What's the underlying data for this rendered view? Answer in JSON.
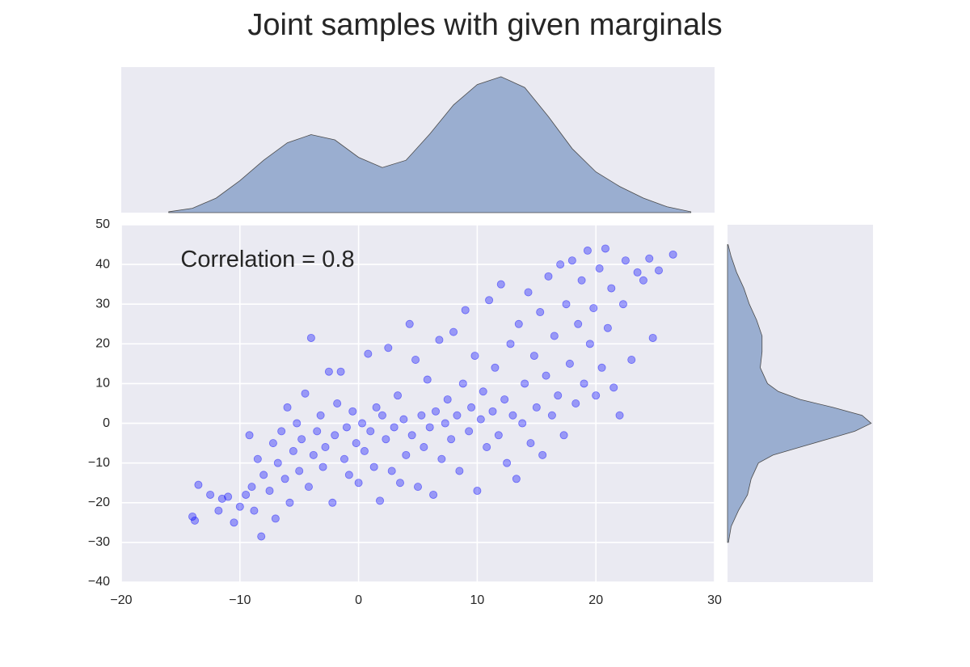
{
  "chart_data": [
    {
      "type": "scatter",
      "title": "Joint samples with given marginals",
      "annotation": "Correlation = 0.8",
      "annotation_at": [
        -15,
        41
      ],
      "color": "#0000ff",
      "grid": true,
      "xlim": [
        -20,
        30
      ],
      "ylim": [
        -40,
        50
      ],
      "xticks": [
        {
          "value": -20,
          "label": "−20"
        },
        {
          "value": -10,
          "label": "−10"
        },
        0,
        10,
        20,
        30
      ],
      "yticks": [
        {
          "value": -40,
          "label": "−40"
        },
        {
          "value": -30,
          "label": "−30"
        },
        {
          "value": -20,
          "label": "−20"
        },
        {
          "value": -10,
          "label": "−10"
        },
        0,
        10,
        20,
        30,
        40,
        50
      ],
      "x": [
        -14,
        -13.8,
        -13.5,
        -12.5,
        -11.8,
        -11.5,
        -11,
        -10.5,
        -10,
        -9.5,
        -9.2,
        -9,
        -8.8,
        -8.5,
        -8.2,
        -8,
        -7.5,
        -7.2,
        -7,
        -6.8,
        -6.5,
        -6.2,
        -6,
        -5.8,
        -5.5,
        -5.2,
        -5,
        -4.8,
        -4.5,
        -4.2,
        -4,
        -3.8,
        -3.5,
        -3.2,
        -3,
        -2.8,
        -2.5,
        -2.2,
        -2,
        -1.8,
        -1.5,
        -1.2,
        -1,
        -0.8,
        -0.5,
        -0.2,
        0,
        0.3,
        0.5,
        0.8,
        1,
        1.3,
        1.5,
        1.8,
        2,
        2.3,
        2.5,
        2.8,
        3,
        3.3,
        3.5,
        3.8,
        4,
        4.3,
        4.5,
        4.8,
        5,
        5.3,
        5.5,
        5.8,
        6,
        6.3,
        6.5,
        6.8,
        7,
        7.3,
        7.5,
        7.8,
        8,
        8.3,
        8.5,
        8.8,
        9,
        9.3,
        9.5,
        9.8,
        10,
        10.3,
        10.5,
        10.8,
        11,
        11.3,
        11.5,
        11.8,
        12,
        12.3,
        12.5,
        12.8,
        13,
        13.3,
        13.5,
        13.8,
        14,
        14.3,
        14.5,
        14.8,
        15,
        15.3,
        15.5,
        15.8,
        16,
        16.3,
        16.5,
        16.8,
        17,
        17.3,
        17.5,
        17.8,
        18,
        18.3,
        18.5,
        18.8,
        19,
        19.3,
        19.5,
        19.8,
        20,
        20.3,
        20.5,
        20.8,
        21,
        21.3,
        21.5,
        22,
        22.3,
        22.5,
        23,
        23.5,
        24,
        24.5,
        24.8,
        25.3,
        26.5
      ],
      "y": [
        -23.5,
        -24.5,
        -15.5,
        -18,
        -22,
        -19,
        -18.5,
        -25,
        -21,
        -18,
        -3,
        -16,
        -22,
        -9,
        -28.5,
        -13,
        -17,
        -5,
        -24,
        -10,
        -2,
        -14,
        4,
        -20,
        -7,
        0,
        -12,
        -4,
        7.5,
        -16,
        21.5,
        -8,
        -2,
        2,
        -11,
        -6,
        13,
        -20,
        -3,
        5,
        13,
        -9,
        -1,
        -13,
        3,
        -5,
        -15,
        0,
        -7,
        17.5,
        -2,
        -11,
        4,
        -19.5,
        2,
        -4,
        19,
        -12,
        -1,
        7,
        -15,
        1,
        -8,
        25,
        -3,
        16,
        -16,
        2,
        -6,
        11,
        -1,
        -18,
        3,
        21,
        -9,
        0,
        6,
        -4,
        23,
        2,
        -12,
        10,
        28.5,
        -2,
        4,
        17,
        -17,
        1,
        8,
        -6,
        31,
        3,
        14,
        -3,
        35,
        6,
        -10,
        20,
        2,
        -14,
        25,
        0,
        10,
        33,
        -5,
        17,
        4,
        28,
        -8,
        12,
        37,
        2,
        22,
        7,
        40,
        -3,
        30,
        15,
        41,
        5,
        25,
        36,
        10,
        43.5,
        20,
        29,
        7,
        39,
        14,
        44,
        24,
        34,
        9,
        2,
        30,
        41,
        16,
        38,
        36,
        41.5,
        21.5,
        38.5,
        42.5
      ]
    },
    {
      "type": "area",
      "color": "#9aaed0",
      "xlim": [
        -20,
        30
      ],
      "ylim": [
        0,
        0.05
      ],
      "x": [
        -16,
        -14,
        -12,
        -10,
        -8,
        -6,
        -4,
        -2,
        0,
        2,
        4,
        6,
        8,
        10,
        12,
        14,
        16,
        18,
        20,
        22,
        24,
        26,
        28
      ],
      "values": [
        0.0003,
        0.0015,
        0.005,
        0.011,
        0.018,
        0.024,
        0.0268,
        0.025,
        0.019,
        0.0155,
        0.018,
        0.027,
        0.037,
        0.044,
        0.0467,
        0.043,
        0.033,
        0.022,
        0.014,
        0.009,
        0.005,
        0.002,
        0.0003
      ]
    },
    {
      "type": "area",
      "orientation": "horizontal",
      "color": "#9aaed0",
      "xlim": [
        0,
        0.08
      ],
      "ylim": [
        -40,
        50
      ],
      "y": [
        -30,
        -26,
        -22,
        -18,
        -14,
        -10,
        -8,
        -6,
        -4,
        -2,
        0,
        2,
        4,
        6,
        8,
        10,
        14,
        18,
        22,
        26,
        30,
        34,
        38,
        42,
        45
      ],
      "values": [
        0.0005,
        0.002,
        0.006,
        0.011,
        0.013,
        0.017,
        0.025,
        0.04,
        0.055,
        0.07,
        0.079,
        0.074,
        0.058,
        0.04,
        0.028,
        0.022,
        0.018,
        0.019,
        0.019,
        0.016,
        0.012,
        0.009,
        0.005,
        0.002,
        0.0003
      ]
    }
  ]
}
